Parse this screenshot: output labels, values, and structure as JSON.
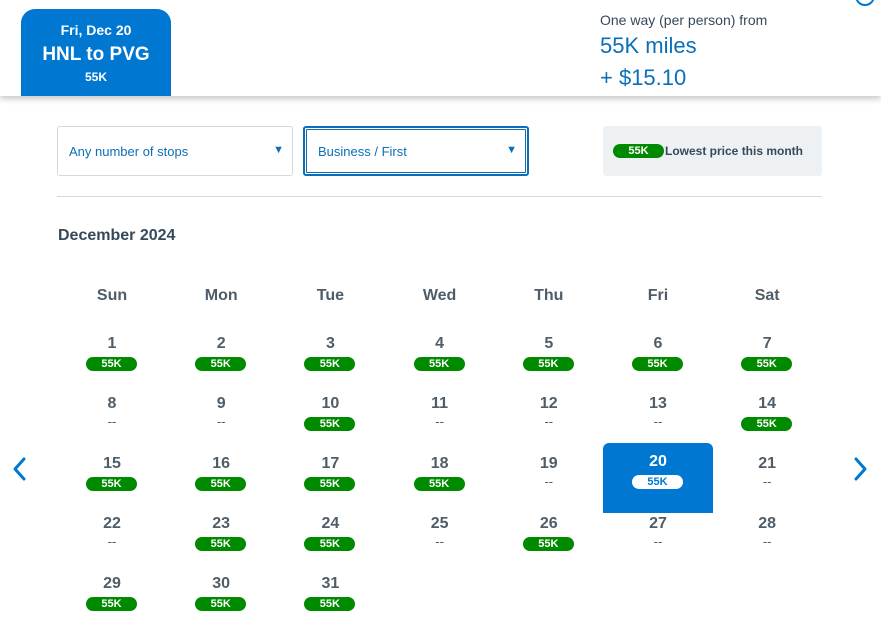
{
  "header": {
    "selected_flight": {
      "date": "Fri, Dec 20",
      "route": "HNL to PVG",
      "miles": "55K"
    },
    "fare": {
      "label": "One way (per person) from",
      "miles": "55K miles",
      "taxes": "+ $15.10"
    }
  },
  "filters": {
    "stops": {
      "value": "Any number of stops"
    },
    "cabin": {
      "value": "Business / First"
    }
  },
  "legend": {
    "badge": "55K",
    "text": "Lowest price this month"
  },
  "calendar": {
    "month": "December 2024",
    "weekdays": [
      "Sun",
      "Mon",
      "Tue",
      "Wed",
      "Thu",
      "Fri",
      "Sat"
    ],
    "selected_day": "20",
    "days": [
      {
        "day": "1",
        "price": "55K"
      },
      {
        "day": "2",
        "price": "55K"
      },
      {
        "day": "3",
        "price": "55K"
      },
      {
        "day": "4",
        "price": "55K"
      },
      {
        "day": "5",
        "price": "55K"
      },
      {
        "day": "6",
        "price": "55K"
      },
      {
        "day": "7",
        "price": "55K"
      },
      {
        "day": "8",
        "price": "--"
      },
      {
        "day": "9",
        "price": "--"
      },
      {
        "day": "10",
        "price": "55K"
      },
      {
        "day": "11",
        "price": "--"
      },
      {
        "day": "12",
        "price": "--"
      },
      {
        "day": "13",
        "price": "--"
      },
      {
        "day": "14",
        "price": "55K"
      },
      {
        "day": "15",
        "price": "55K"
      },
      {
        "day": "16",
        "price": "55K"
      },
      {
        "day": "17",
        "price": "55K"
      },
      {
        "day": "18",
        "price": "55K"
      },
      {
        "day": "19",
        "price": "--"
      },
      {
        "day": "20",
        "price": "55K"
      },
      {
        "day": "21",
        "price": "--"
      },
      {
        "day": "22",
        "price": "--"
      },
      {
        "day": "23",
        "price": "55K"
      },
      {
        "day": "24",
        "price": "55K"
      },
      {
        "day": "25",
        "price": "--"
      },
      {
        "day": "26",
        "price": "55K"
      },
      {
        "day": "27",
        "price": "--"
      },
      {
        "day": "28",
        "price": "--"
      },
      {
        "day": "29",
        "price": "55K"
      },
      {
        "day": "30",
        "price": "55K"
      },
      {
        "day": "31",
        "price": "55K"
      }
    ]
  },
  "nav": {
    "prev_icon": "chevron-left-icon",
    "next_icon": "chevron-right-icon"
  },
  "colors": {
    "primary": "#0078d2",
    "price_badge": "#008a00",
    "text": "#36495a"
  }
}
